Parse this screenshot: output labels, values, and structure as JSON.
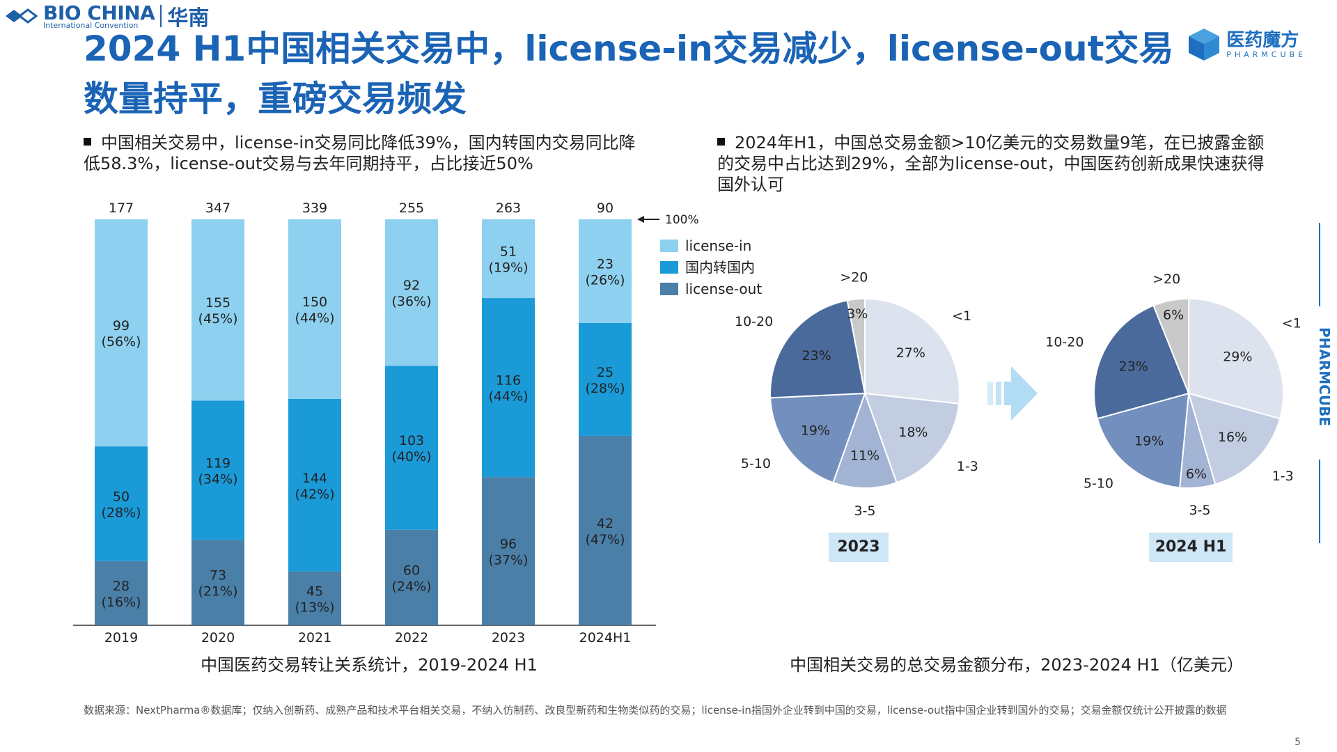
{
  "header": {
    "brand_en": "BIO CHINA",
    "brand_sub": "International Convention",
    "brand_cn": "华南",
    "pharmcube_cn": "医药魔方",
    "pharmcube_en": "PHARMCUBE",
    "side_brand": "PHARMCUBE"
  },
  "title": "2024 H1中国相关交易中，license-in交易减少，license-out交易数量持平，重磅交易频发",
  "bullets": {
    "left": "中国相关交易中，license-in交易同比降低39%，国内转国内交易同比降低58.3%，license-out交易与去年同期持平，占比接近50%",
    "right": "2024年H1，中国总交易金额>10亿美元的交易数量9笔，在已披露金额的交易中占比达到29%，全部为license-out，中国医药创新成果快速获得国外认可"
  },
  "chart_data": [
    {
      "type": "bar",
      "stacked": true,
      "normalized": true,
      "title": "中国医药交易转让关系统计，2019-2024 H1",
      "categories": [
        "2019",
        "2020",
        "2021",
        "2022",
        "2023",
        "2024H1"
      ],
      "totals": [
        "177",
        "347",
        "339",
        "255",
        "263",
        "90"
      ],
      "hundred_pct_label": "100%",
      "series": [
        {
          "name": "license-out",
          "color": "#4a7fa8",
          "values": [
            28,
            73,
            45,
            60,
            96,
            42
          ],
          "pct": [
            "16%",
            "21%",
            "13%",
            "24%",
            "37%",
            "47%"
          ]
        },
        {
          "name": "国内转国内",
          "color": "#1a9ad7",
          "values": [
            50,
            119,
            144,
            103,
            116,
            25
          ],
          "pct": [
            "28%",
            "34%",
            "42%",
            "40%",
            "44%",
            "28%"
          ]
        },
        {
          "name": "license-in",
          "color": "#8ed0ef",
          "values": [
            99,
            155,
            150,
            92,
            51,
            23
          ],
          "pct": [
            "56%",
            "45%",
            "44%",
            "36%",
            "19%",
            "26%"
          ]
        }
      ],
      "legend": [
        "license-in",
        "国内转国内",
        "license-out"
      ],
      "legend_position": "right"
    },
    {
      "type": "pie",
      "title": "中国相关交易的总交易金额分布，2023-2024 H1（亿美元）",
      "pies": [
        {
          "label": "2023",
          "slices": [
            {
              "name": "<1",
              "value": 27,
              "text": "27%",
              "color": "#dde3ee"
            },
            {
              "name": "1-3",
              "value": 18,
              "text": "18%",
              "color": "#c3cde1"
            },
            {
              "name": "3-5",
              "value": 11,
              "text": "11%",
              "color": "#a2b3d3"
            },
            {
              "name": "5-10",
              "value": 19,
              "text": "19%",
              "color": "#738fbd"
            },
            {
              "name": "10-20",
              "value": 23,
              "text": "23%",
              "color": "#4b6a9c"
            },
            {
              "name": ">20",
              "value": 3,
              "text": "3%",
              "color": "#c9c9c9"
            }
          ]
        },
        {
          "label": "2024 H1",
          "slices": [
            {
              "name": "<1",
              "value": 29,
              "text": "29%",
              "color": "#dde3ee"
            },
            {
              "name": "1-3",
              "value": 16,
              "text": "16%",
              "color": "#c3cde1"
            },
            {
              "name": "3-5",
              "value": 6,
              "text": "6%",
              "color": "#a2b3d3"
            },
            {
              "name": "5-10",
              "value": 19,
              "text": "19%",
              "color": "#738fbd"
            },
            {
              "name": "10-20",
              "value": 23,
              "text": "23%",
              "color": "#4b6a9c"
            },
            {
              "name": ">20",
              "value": 6,
              "text": "6%",
              "color": "#c9c9c9"
            }
          ]
        }
      ]
    }
  ],
  "source": "数据来源：NextPharma®数据库；仅纳入创新药、成熟产品和技术平台相关交易，不纳入仿制药、改良型新药和生物类似药的交易；license-in指国外企业转到中国的交易，license-out指中国企业转到国外的交易；交易金额仅统计公开披露的数据",
  "page_number": "5"
}
